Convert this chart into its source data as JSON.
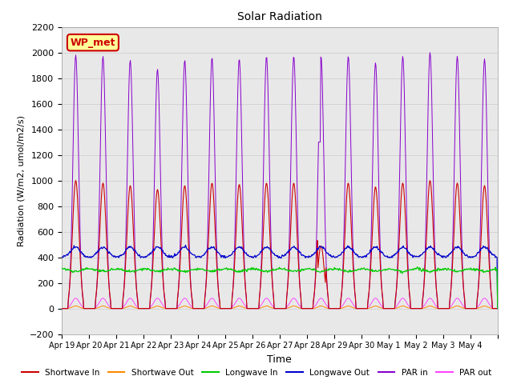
{
  "title": "Solar Radiation",
  "xlabel": "Time",
  "ylabel": "Radiation (W/m2, umol/m2/s)",
  "ylim": [
    -200,
    2200
  ],
  "yticks": [
    -200,
    0,
    200,
    400,
    600,
    800,
    1000,
    1200,
    1400,
    1600,
    1800,
    2000,
    2200
  ],
  "legend_labels": [
    "Shortwave In",
    "Shortwave Out",
    "Longwave In",
    "Longwave Out",
    "PAR in",
    "PAR out"
  ],
  "legend_colors": [
    "#cc0000",
    "#ff8800",
    "#00cc00",
    "#0000cc",
    "#8800cc",
    "#ff44ff"
  ],
  "annotation_text": "WP_met",
  "annotation_color": "#cc0000",
  "annotation_bg": "#ffff99",
  "n_days": 16,
  "background_color": "#ffffff",
  "grid_color": "#cccccc",
  "title_fontsize": 10,
  "figsize": [
    6.4,
    4.8
  ],
  "dpi": 100
}
